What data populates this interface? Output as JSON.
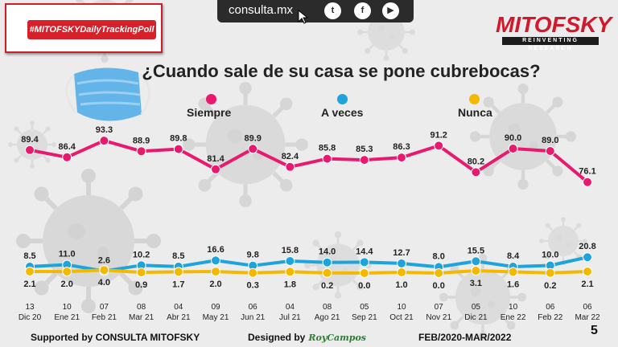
{
  "header": {
    "site": "consulta.mx",
    "hashtag": "#MITOFSKYDailyTrackingPoll",
    "logo_main": "MITOFSKY",
    "logo_sub": "REINVENTING RESEARCH",
    "social_icons": [
      "twitter-icon",
      "facebook-icon",
      "youtube-icon"
    ]
  },
  "chart_data": {
    "type": "line",
    "title": "¿Cuando sale de su casa se pone cubrebocas?",
    "categories": [
      [
        "13",
        "Dic 20"
      ],
      [
        "10",
        "Ene 21"
      ],
      [
        "07",
        "Feb 21"
      ],
      [
        "08",
        "Mar 21"
      ],
      [
        "04",
        "Abr 21"
      ],
      [
        "09",
        "May 21"
      ],
      [
        "06",
        "Jun 21"
      ],
      [
        "04",
        "Jul 21"
      ],
      [
        "08",
        "Ago 21"
      ],
      [
        "05",
        "Sep 21"
      ],
      [
        "10",
        "Oct 21"
      ],
      [
        "07",
        "Nov 21"
      ],
      [
        "05",
        "Dic 21"
      ],
      [
        "10",
        "Ene 22"
      ],
      [
        "06",
        "Feb 22"
      ],
      [
        "06",
        "Mar 22"
      ]
    ],
    "series": [
      {
        "name": "Siempre",
        "color": "#e8196e",
        "values": [
          89.4,
          86.4,
          93.3,
          88.9,
          89.8,
          81.4,
          89.9,
          82.4,
          85.8,
          85.3,
          86.3,
          91.2,
          80.2,
          90.0,
          89.0,
          76.1
        ]
      },
      {
        "name": "A veces",
        "color": "#1ea3dc",
        "values": [
          8.5,
          11.0,
          2.6,
          10.2,
          8.5,
          16.6,
          9.8,
          15.8,
          14.0,
          14.4,
          12.7,
          8.0,
          15.5,
          8.4,
          10.0,
          20.8
        ]
      },
      {
        "name": "Nunca",
        "color": "#f5b800",
        "values": [
          2.1,
          2.0,
          4.0,
          0.9,
          1.7,
          2.0,
          0.3,
          1.8,
          0.2,
          0.0,
          1.0,
          0.0,
          3.1,
          1.6,
          0.2,
          2.1
        ]
      }
    ],
    "labels": {
      "Siempre": [
        "89.4",
        "86.4",
        "93.3",
        "88.9",
        "89.8",
        "81.4",
        "89.9",
        "82.4",
        "85.8",
        "85.3",
        "86.3",
        "91.2",
        "80.2",
        "90.0",
        "89.0",
        "76.1"
      ],
      "A veces": [
        "8.5",
        "11.0",
        "2.6",
        "10.2",
        "8.5",
        "16.6",
        "9.8",
        "15.8",
        "14.0",
        "14.4",
        "12.7",
        "8.0",
        "15.5",
        "8.4",
        "10.0",
        "20.8"
      ],
      "Nunca": [
        "2.1",
        "2.0",
        "4.0",
        "0.9",
        "1.7",
        "2.0",
        "0.3",
        "1.8",
        "0.2",
        "0.0",
        "1.0",
        "0.0",
        "3.1",
        "1.6",
        "0.2",
        "2.1"
      ]
    },
    "legend_position": "top"
  },
  "footer": {
    "supported": "Supported by   CONSULTA  MITOFSKY",
    "designed": "Designed by",
    "designer_signature": "RoyCampos",
    "period": "FEB/2020-MAR/2022",
    "page": "5"
  }
}
